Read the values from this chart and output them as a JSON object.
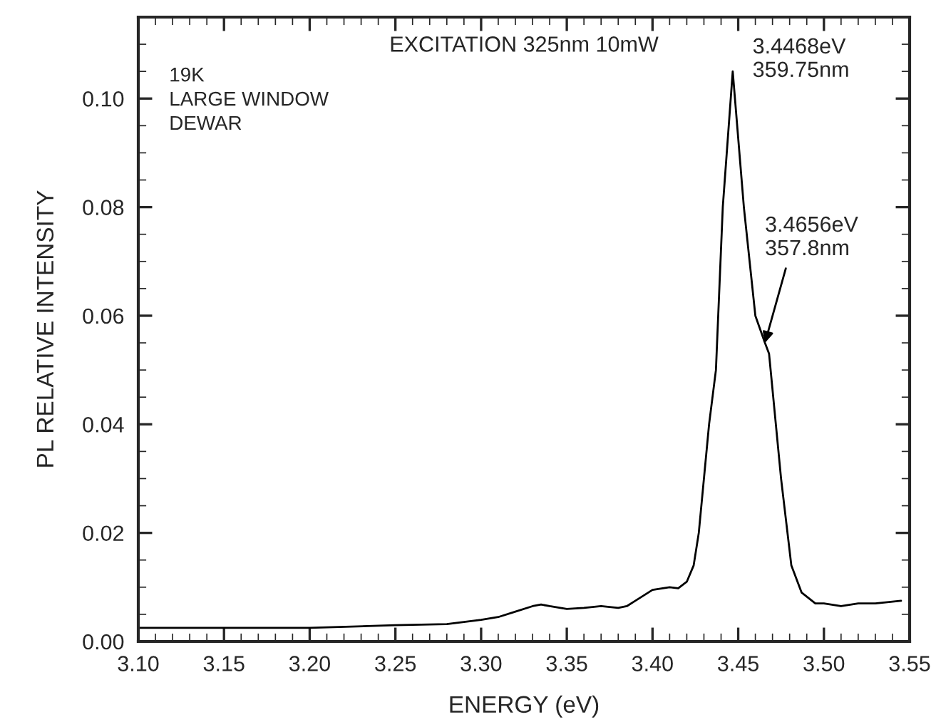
{
  "chart_data": {
    "type": "line",
    "xlabel": "ENERGY (eV)",
    "ylabel": "PL RELATIVE INTENSITY",
    "annotations": [
      "EXCITATION 325nm 10mW",
      "19K\nLARGE WINDOW\nDEWAR",
      {
        "text": "3.4468eV\n359.75nm",
        "x": 3.4468,
        "y": 0.105
      },
      {
        "text": "3.4656eV\n357.8nm",
        "x": 3.4656,
        "y": 0.055
      }
    ],
    "series": [
      {
        "color": "#000000",
        "x": [
          3.1,
          3.15,
          3.2,
          3.25,
          3.28,
          3.3,
          3.31,
          3.32,
          3.33,
          3.335,
          3.34,
          3.35,
          3.36,
          3.37,
          3.38,
          3.385,
          3.39,
          3.4,
          3.41,
          3.415,
          3.42,
          3.424,
          3.427,
          3.433,
          3.437,
          3.441,
          3.4468,
          3.4533,
          3.46,
          3.4656,
          3.468,
          3.475,
          3.481,
          3.487,
          3.495,
          3.5,
          3.51,
          3.52,
          3.53,
          3.545
        ],
        "values": [
          0.0025,
          0.0025,
          0.0025,
          0.003,
          0.0032,
          0.004,
          0.0045,
          0.0055,
          0.0065,
          0.0068,
          0.0065,
          0.006,
          0.0062,
          0.0065,
          0.0062,
          0.0065,
          0.0075,
          0.0095,
          0.01,
          0.0098,
          0.011,
          0.014,
          0.02,
          0.04,
          0.05,
          0.08,
          0.105,
          0.08,
          0.06,
          0.055,
          0.053,
          0.03,
          0.014,
          0.009,
          0.007,
          0.007,
          0.0065,
          0.007,
          0.007,
          0.0075
        ]
      }
    ],
    "xlim": [
      3.1,
      3.55
    ],
    "xticks": [
      {
        "value": 3.1,
        "label": "3.10"
      },
      3.15,
      {
        "value": 3.2,
        "label": "3.20"
      },
      3.25,
      {
        "value": 3.3,
        "label": "3.30"
      },
      3.35,
      {
        "value": 3.4,
        "label": "3.40"
      },
      3.45,
      {
        "value": 3.5,
        "label": "3.50"
      },
      3.55
    ],
    "ylim": [
      0,
      0.115
    ],
    "yticks": [
      {
        "value": 0,
        "label": "0.00"
      },
      0.02,
      0.04,
      0.06,
      0.08,
      {
        "value": 0.1,
        "label": "0.10"
      }
    ],
    "grid": false,
    "legend": false,
    "marker": "none",
    "line_style": "solid"
  }
}
